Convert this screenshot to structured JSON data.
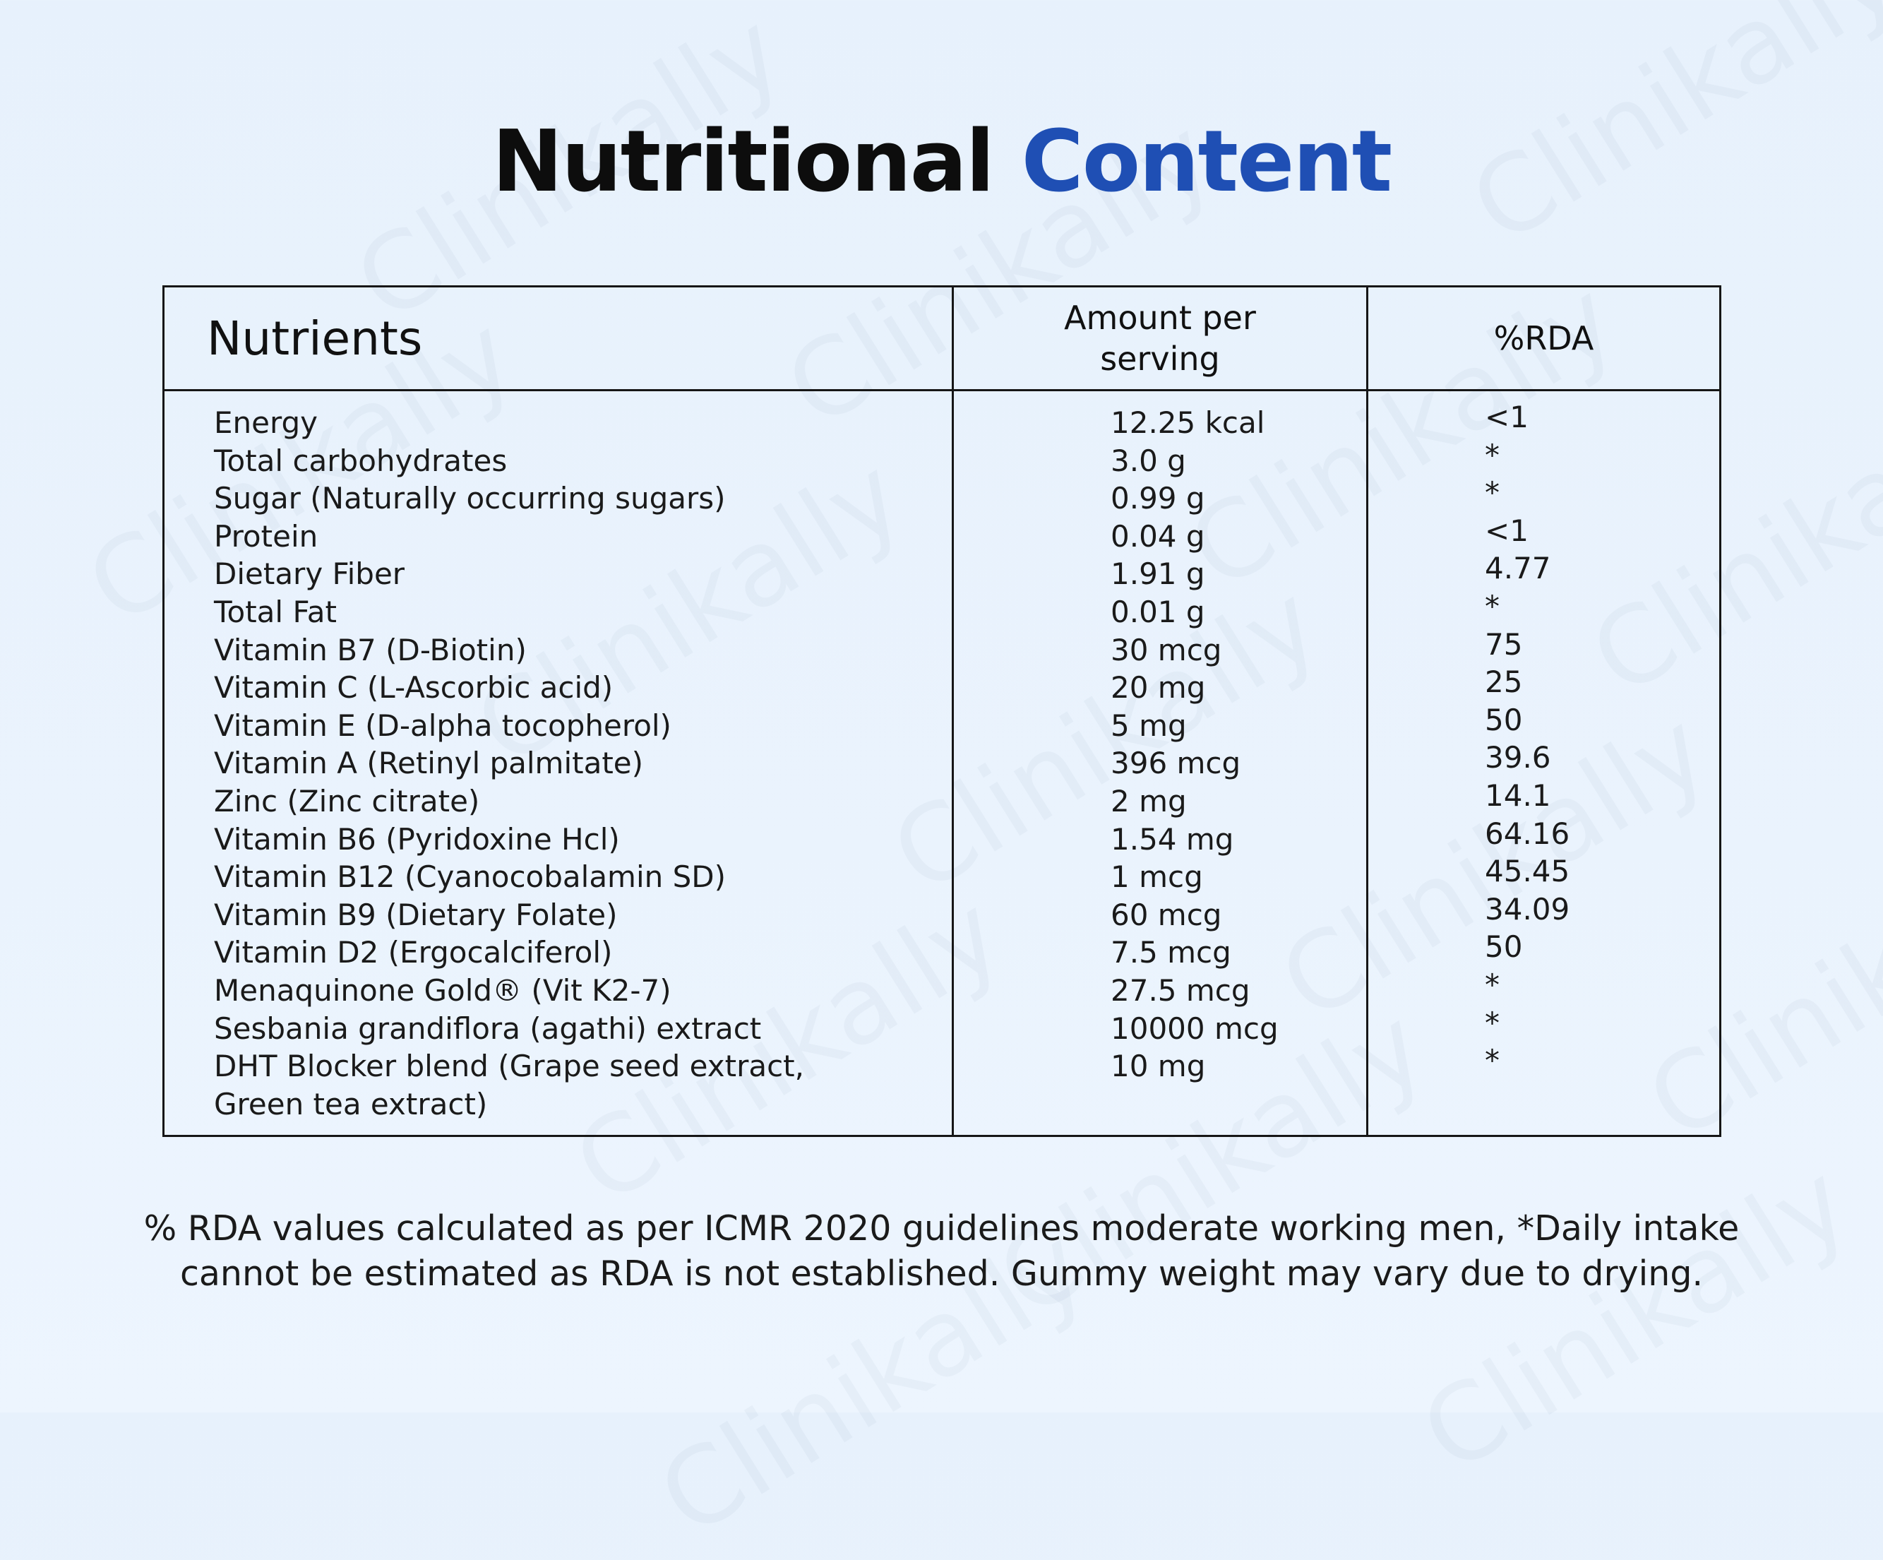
{
  "watermark": "Clinikally",
  "title": {
    "part1": "Nutritional",
    "part2": "Content"
  },
  "table": {
    "headers": {
      "nutrients": "Nutrients",
      "amount_line1": "Amount per",
      "amount_line2": "serving",
      "rda": "%RDA"
    },
    "rows": [
      {
        "nutrient": "Energy",
        "amount": "12.25 kcal",
        "rda": "<1"
      },
      {
        "nutrient": "Total carbohydrates",
        "amount": "3.0 g",
        "rda": "*"
      },
      {
        "nutrient": "Sugar (Naturally occurring sugars)",
        "amount": "0.99 g",
        "rda": "*"
      },
      {
        "nutrient": "Protein",
        "amount": "0.04 g",
        "rda": "<1"
      },
      {
        "nutrient": "Dietary Fiber",
        "amount": "1.91 g",
        "rda": "4.77"
      },
      {
        "nutrient": "Total Fat",
        "amount": "0.01 g",
        "rda": "*"
      },
      {
        "nutrient": "Vitamin B7 (D-Biotin)",
        "amount": "30 mcg",
        "rda": "75"
      },
      {
        "nutrient": "Vitamin C (L-Ascorbic acid)",
        "amount": "20 mg",
        "rda": "25"
      },
      {
        "nutrient": "Vitamin E (D-alpha tocopherol)",
        "amount": "5 mg",
        "rda": "50"
      },
      {
        "nutrient": "Vitamin A (Retinyl palmitate)",
        "amount": "396 mcg",
        "rda": "39.6"
      },
      {
        "nutrient": "Zinc (Zinc citrate)",
        "amount": "2 mg",
        "rda": "14.1"
      },
      {
        "nutrient": "Vitamin B6 (Pyridoxine Hcl)",
        "amount": "1.54 mg",
        "rda": "64.16"
      },
      {
        "nutrient": "Vitamin B12 (Cyanocobalamin SD)",
        "amount": "1 mcg",
        "rda": "45.45"
      },
      {
        "nutrient": "Vitamin B9 (Dietary Folate)",
        "amount": "60 mcg",
        "rda": "34.09"
      },
      {
        "nutrient": "Vitamin D2 (Ergocalciferol)",
        "amount": "7.5 mcg",
        "rda": "50"
      },
      {
        "nutrient": "Menaquinone Gold® (Vit K2-7)",
        "amount": "27.5 mcg",
        "rda": "*"
      },
      {
        "nutrient": "Sesbania grandiflora (agathi) extract",
        "amount": "10000 mcg",
        "rda": "*"
      },
      {
        "nutrient": "DHT Blocker blend (Grape seed extract,",
        "amount": "10 mg",
        "rda": "*"
      },
      {
        "nutrient": "Green tea extract)",
        "amount": "",
        "rda": ""
      }
    ]
  },
  "footnote": {
    "line1": "% RDA values calculated as per ICMR 2020 guidelines moderate working men, *Daily intake",
    "line2": "cannot be estimated as RDA is not established. Gummy weight may vary due to drying."
  },
  "colors": {
    "background": "#e9f2fc",
    "title_dark": "#0d0d0d",
    "title_accent": "#1f4fb4",
    "border": "#161616"
  }
}
